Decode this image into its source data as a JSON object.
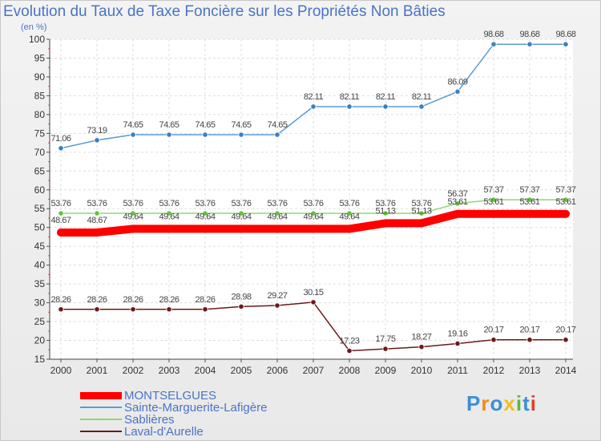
{
  "chart_data": {
    "type": "line",
    "title": "Evolution du Taux de Taxe Foncière sur les Propriétés Non Bâties",
    "ylabel": "(en %)",
    "ylim": [
      15,
      100
    ],
    "yticks": [
      15,
      20,
      25,
      30,
      35,
      40,
      45,
      50,
      55,
      60,
      65,
      70,
      75,
      80,
      85,
      90,
      95,
      100
    ],
    "categories": [
      "2000",
      "2001",
      "2002",
      "2003",
      "2004",
      "2005",
      "2006",
      "2007",
      "2008",
      "2009",
      "2010",
      "2011",
      "2012",
      "2013",
      "2014"
    ],
    "series": [
      {
        "name": "Sainte-Marguerite-Lafigère",
        "color": "#5b9bd5",
        "marker": "#3b7fc4",
        "values": [
          71.06,
          73.19,
          74.65,
          74.65,
          74.65,
          74.65,
          74.65,
          82.11,
          82.11,
          82.11,
          82.11,
          86.09,
          98.68,
          98.68,
          98.68
        ],
        "labels": [
          "71.06",
          "73.19",
          "74.65",
          "74.65",
          "74.65",
          "74.65",
          "74.65",
          "82.11",
          "82.11",
          "82.11",
          "82.11",
          "86.09",
          "98.68",
          "98.68",
          "98.68"
        ]
      },
      {
        "name": "Sablières",
        "color": "#8fd870",
        "marker": "#62c23f",
        "values": [
          53.76,
          53.76,
          53.76,
          53.76,
          53.76,
          53.76,
          53.76,
          53.76,
          53.76,
          53.76,
          53.76,
          56.37,
          57.37,
          57.37,
          57.37
        ],
        "labels": [
          "53.76",
          "53.76",
          "53.76",
          "53.76",
          "53.76",
          "53.76",
          "53.76",
          "53.76",
          "53.76",
          "53.76",
          "53.76",
          "56.37",
          "57.37",
          "57.37",
          "57.37"
        ]
      },
      {
        "name": "MONTSELGUES",
        "color": "#ff0000",
        "marker": "#ff0000",
        "values": [
          48.67,
          48.67,
          49.64,
          49.64,
          49.64,
          49.64,
          49.64,
          49.64,
          49.64,
          51.13,
          51.13,
          53.61,
          53.61,
          53.61,
          53.61
        ],
        "labels": [
          "48.67",
          "48.67",
          "49.64",
          "49.64",
          "49.64",
          "49.64",
          "49.64",
          "49.64",
          "49.64",
          "51.13",
          "51.13",
          "53.61",
          "53.61",
          "53.61",
          "53.61"
        ]
      },
      {
        "name": "Laval-d'Aurelle",
        "color": "#6b1a1a",
        "marker": "#6b1a1a",
        "values": [
          28.26,
          28.26,
          28.26,
          28.26,
          28.26,
          28.98,
          29.27,
          30.15,
          17.23,
          17.75,
          18.27,
          19.16,
          20.17,
          20.17,
          20.17
        ],
        "labels": [
          "28.26",
          "28.26",
          "28.26",
          "28.26",
          "28.26",
          "28.98",
          "29.27",
          "30.15",
          "17.23",
          "17.75",
          "18.27",
          "19.16",
          "20.17",
          "20.17",
          "20.17"
        ]
      }
    ],
    "legend": [
      {
        "name": "MONTSELGUES",
        "color": "#ff0000"
      },
      {
        "name": "Sainte-Marguerite-Lafigère",
        "color": "#5b9bd5"
      },
      {
        "name": "Sablières",
        "color": "#8fd870"
      },
      {
        "name": "Laval-d'Aurelle",
        "color": "#6b1a1a"
      }
    ],
    "legend_position": "bottom-left"
  },
  "logo": {
    "letters": [
      "P",
      "r",
      "o",
      "x",
      "i",
      "t",
      "i"
    ],
    "colors": [
      "#3a8fd8",
      "#f08a1c",
      "#3a8fd8",
      "#f0c020",
      "#5cb83c",
      "#3a8fd8",
      "#e0402a"
    ]
  }
}
